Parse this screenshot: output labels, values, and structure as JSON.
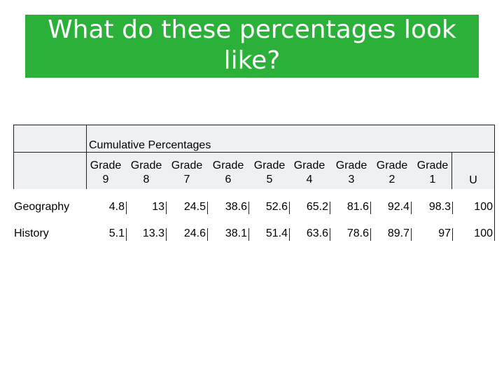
{
  "title": "What do these percentages look like?",
  "table": {
    "caption": "Cumulative Percentages",
    "columns": [
      {
        "top": "Grade",
        "bottom": "9"
      },
      {
        "top": "Grade",
        "bottom": "8"
      },
      {
        "top": "Grade",
        "bottom": "7"
      },
      {
        "top": "Grade",
        "bottom": "6"
      },
      {
        "top": "Grade",
        "bottom": "5"
      },
      {
        "top": "Grade",
        "bottom": "4"
      },
      {
        "top": "Grade",
        "bottom": "3"
      },
      {
        "top": "Grade",
        "bottom": "2"
      },
      {
        "top": "Grade",
        "bottom": "1"
      },
      {
        "top": "",
        "bottom": "U"
      }
    ],
    "rows": [
      {
        "label": "Geography",
        "values": [
          "4.8",
          "13",
          "24.5",
          "38.6",
          "52.6",
          "65.2",
          "81.6",
          "92.4",
          "98.3",
          "100"
        ]
      },
      {
        "label": "History",
        "values": [
          "5.1",
          "13.3",
          "24.6",
          "38.1",
          "51.4",
          "63.6",
          "78.6",
          "89.7",
          "97",
          "100"
        ]
      }
    ]
  }
}
